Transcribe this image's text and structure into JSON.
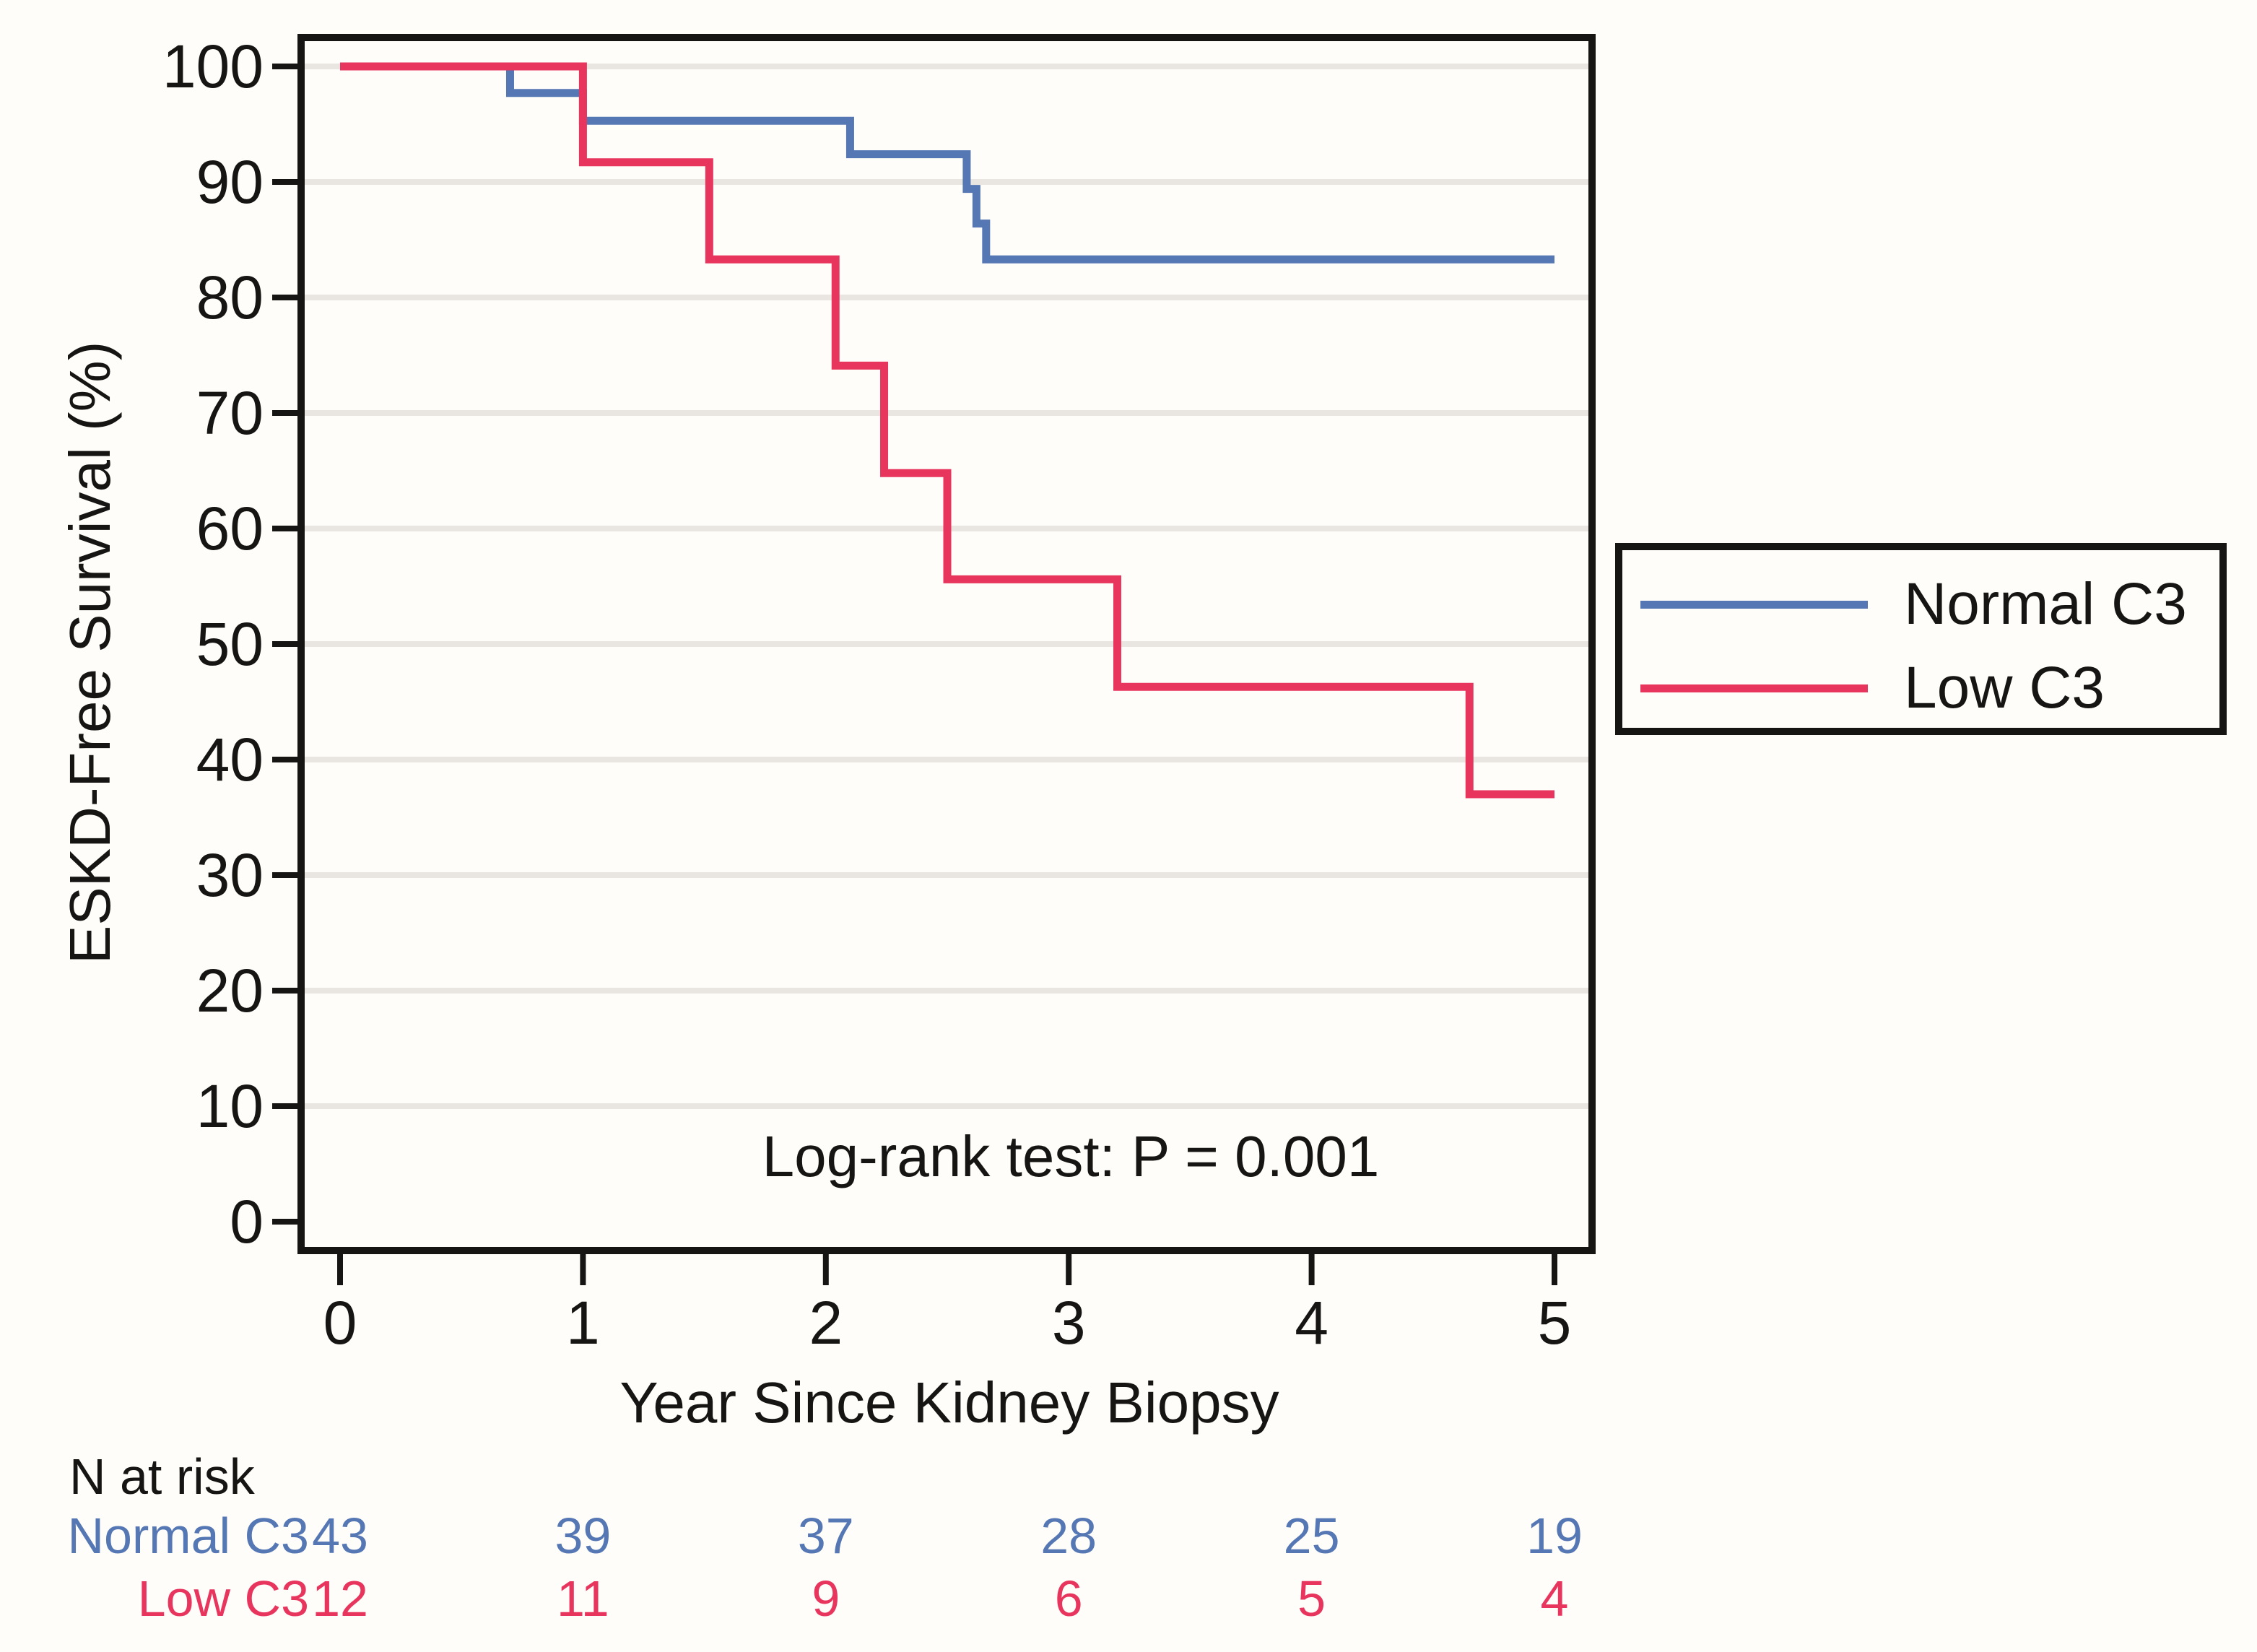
{
  "chart_data": {
    "type": "line",
    "subtype": "kaplan-meier-step",
    "title": "",
    "xlabel": "Year Since Kidney Biopsy",
    "ylabel": "ESKD-Free Survival (%)",
    "xlim": [
      0,
      5
    ],
    "ylim": [
      0,
      100
    ],
    "x_ticks": [
      0,
      1,
      2,
      3,
      4,
      5
    ],
    "y_ticks": [
      0,
      10,
      20,
      30,
      40,
      50,
      60,
      70,
      80,
      90,
      100
    ],
    "grid": "horizontal-only",
    "legend_position": "right-outside",
    "annotation": "Log-rank test: P = 0.001",
    "series": [
      {
        "name": "Normal C3",
        "color": "#5577b4",
        "steps": [
          [
            0,
            100
          ],
          [
            0.7,
            97.7
          ],
          [
            1.0,
            95.3
          ],
          [
            2.1,
            92.4
          ],
          [
            2.58,
            89.4
          ],
          [
            2.62,
            86.4
          ],
          [
            2.66,
            83.3
          ],
          [
            5,
            83.3
          ]
        ]
      },
      {
        "name": "Low C3",
        "color": "#e8355e",
        "steps": [
          [
            0,
            100
          ],
          [
            1.0,
            91.7
          ],
          [
            1.52,
            83.3
          ],
          [
            2.04,
            74.1
          ],
          [
            2.24,
            64.8
          ],
          [
            2.5,
            55.6
          ],
          [
            3.2,
            46.3
          ],
          [
            4.65,
            37.0
          ],
          [
            5,
            37.0
          ]
        ]
      }
    ]
  },
  "legend": {
    "items": [
      {
        "label": "Normal C3",
        "color": "#5577b4"
      },
      {
        "label": "Low C3",
        "color": "#e8355e"
      }
    ]
  },
  "risk_table": {
    "header": "N at risk",
    "time_points": [
      0,
      1,
      2,
      3,
      4,
      5
    ],
    "rows": [
      {
        "label": "Normal C3",
        "color": "#5577b4",
        "values": [
          "43",
          "39",
          "37",
          "28",
          "25",
          "19"
        ]
      },
      {
        "label": "Low C3",
        "color": "#e8355e",
        "values": [
          "12",
          "11",
          "9",
          "6",
          "5",
          "4"
        ]
      }
    ]
  },
  "colors": {
    "axis": "#171513",
    "grid": "#e9e5e0",
    "background": "#fffdf9",
    "normal_c3": "#5577b4",
    "low_c3": "#e8355e"
  }
}
